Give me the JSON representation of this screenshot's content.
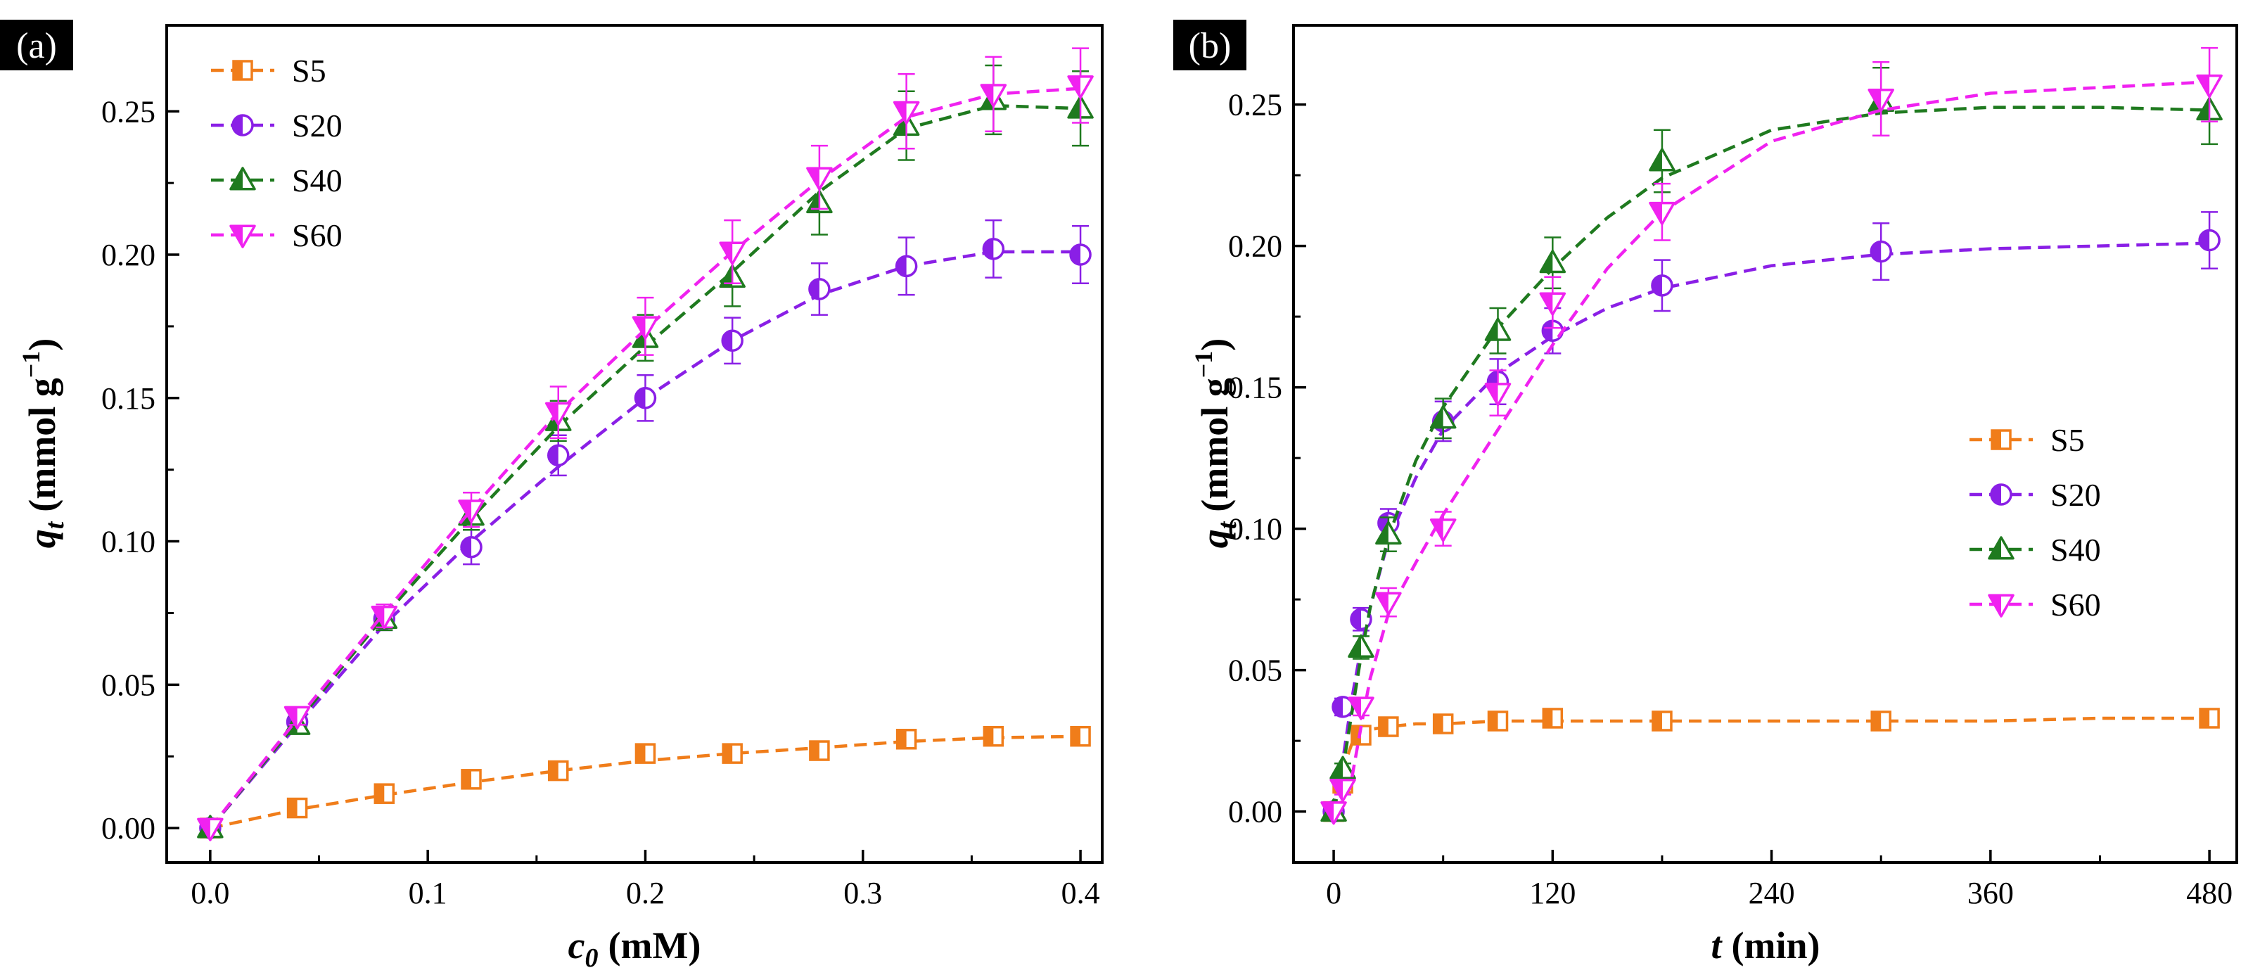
{
  "chart_data": [
    {
      "panel_label": "(a)",
      "type": "line",
      "x_label_main": "c",
      "x_label_sub": "0",
      "x_label_unit": "(mM)",
      "y_label_main": "q",
      "y_label_sub": "t",
      "y_label_unit": "(mmol g",
      "y_label_sup": "−1",
      "y_label_close": ")",
      "xlim": [
        -0.02,
        0.41
      ],
      "ylim": [
        -0.012,
        0.28
      ],
      "xticks": [
        0.0,
        0.1,
        0.2,
        0.3,
        0.4
      ],
      "xtick_labels": [
        "0.0",
        "0.1",
        "0.2",
        "0.3",
        "0.4"
      ],
      "yticks": [
        0.0,
        0.05,
        0.1,
        0.15,
        0.2,
        0.25
      ],
      "ytick_labels": [
        "0.00",
        "0.05",
        "0.10",
        "0.15",
        "0.20",
        "0.25"
      ],
      "legend_position": "top-left",
      "series": [
        {
          "name": "S5",
          "color": "#F07D1A",
          "marker": "square",
          "x": [
            0,
            0.04,
            0.08,
            0.12,
            0.16,
            0.2,
            0.24,
            0.28,
            0.32,
            0.36,
            0.4
          ],
          "y": [
            0.0,
            0.007,
            0.012,
            0.017,
            0.02,
            0.026,
            0.026,
            0.027,
            0.031,
            0.032,
            0.032
          ],
          "err": [
            0,
            0.0015,
            0.0015,
            0.0015,
            0.0015,
            0.0015,
            0.0015,
            0.0015,
            0.0015,
            0.0015,
            0.0015
          ],
          "fit_x": [
            0,
            0.04,
            0.08,
            0.12,
            0.16,
            0.2,
            0.24,
            0.28,
            0.32,
            0.36,
            0.4
          ],
          "fit_y": [
            0.0,
            0.0065,
            0.0115,
            0.016,
            0.02,
            0.0235,
            0.026,
            0.028,
            0.0302,
            0.0315,
            0.032
          ]
        },
        {
          "name": "S20",
          "color": "#8A1FE6",
          "marker": "circle",
          "x": [
            0,
            0.04,
            0.08,
            0.12,
            0.16,
            0.2,
            0.24,
            0.28,
            0.32,
            0.36,
            0.4
          ],
          "y": [
            0.0,
            0.037,
            0.073,
            0.098,
            0.13,
            0.15,
            0.17,
            0.188,
            0.196,
            0.202,
            0.2
          ],
          "err": [
            0,
            0.003,
            0.004,
            0.006,
            0.007,
            0.008,
            0.008,
            0.009,
            0.01,
            0.01,
            0.01
          ],
          "fit_x": [
            0,
            0.04,
            0.08,
            0.12,
            0.16,
            0.2,
            0.24,
            0.28,
            0.32,
            0.36,
            0.4
          ],
          "fit_y": [
            0.0,
            0.036,
            0.071,
            0.1,
            0.126,
            0.15,
            0.17,
            0.186,
            0.196,
            0.201,
            0.201
          ]
        },
        {
          "name": "S40",
          "color": "#1F7A1F",
          "marker": "triangle-up",
          "x": [
            0,
            0.04,
            0.08,
            0.12,
            0.16,
            0.2,
            0.24,
            0.28,
            0.32,
            0.36,
            0.4
          ],
          "y": [
            0.0,
            0.036,
            0.073,
            0.109,
            0.142,
            0.171,
            0.192,
            0.218,
            0.245,
            0.254,
            0.251
          ],
          "err": [
            0,
            0.003,
            0.004,
            0.005,
            0.007,
            0.008,
            0.01,
            0.011,
            0.012,
            0.012,
            0.013
          ],
          "fit_x": [
            0,
            0.04,
            0.08,
            0.12,
            0.16,
            0.2,
            0.24,
            0.28,
            0.32,
            0.36,
            0.4
          ],
          "fit_y": [
            0.0,
            0.037,
            0.074,
            0.108,
            0.14,
            0.168,
            0.194,
            0.222,
            0.244,
            0.252,
            0.251
          ]
        },
        {
          "name": "S60",
          "color": "#F022F0",
          "marker": "triangle-down",
          "x": [
            0,
            0.04,
            0.08,
            0.12,
            0.16,
            0.2,
            0.24,
            0.28,
            0.32,
            0.36,
            0.4
          ],
          "y": [
            0.0,
            0.039,
            0.074,
            0.111,
            0.145,
            0.175,
            0.201,
            0.227,
            0.25,
            0.256,
            0.259
          ],
          "err": [
            0,
            0.003,
            0.004,
            0.006,
            0.009,
            0.01,
            0.011,
            0.011,
            0.013,
            0.013,
            0.013
          ],
          "fit_x": [
            0,
            0.04,
            0.08,
            0.12,
            0.16,
            0.2,
            0.24,
            0.28,
            0.32,
            0.36,
            0.4
          ],
          "fit_y": [
            0.0,
            0.038,
            0.075,
            0.111,
            0.145,
            0.174,
            0.201,
            0.226,
            0.248,
            0.256,
            0.258
          ]
        }
      ]
    },
    {
      "panel_label": "(b)",
      "type": "line",
      "x_label_main": "t",
      "x_label_sub": "",
      "x_label_unit": "(min)",
      "y_label_main": "q",
      "y_label_sub": "t",
      "y_label_unit": "(mmol g",
      "y_label_sup": "−1",
      "y_label_close": ")",
      "xlim": [
        -22,
        495
      ],
      "ylim": [
        -0.018,
        0.278
      ],
      "xticks": [
        0,
        120,
        240,
        360,
        480
      ],
      "xtick_labels": [
        "0",
        "120",
        "240",
        "360",
        "480"
      ],
      "yticks": [
        0.0,
        0.05,
        0.1,
        0.15,
        0.2,
        0.25
      ],
      "ytick_labels": [
        "0.00",
        "0.05",
        "0.10",
        "0.15",
        "0.20",
        "0.25"
      ],
      "legend_position": "center-right",
      "series": [
        {
          "name": "S5",
          "color": "#F07D1A",
          "marker": "square",
          "x": [
            0,
            5,
            15,
            30,
            60,
            90,
            120,
            180,
            300,
            480
          ],
          "y": [
            0.0,
            0.01,
            0.027,
            0.03,
            0.031,
            0.032,
            0.033,
            0.032,
            0.032,
            0.033
          ],
          "err": [
            0,
            0.0015,
            0.0015,
            0.0015,
            0.0015,
            0.0015,
            0.0015,
            0.0015,
            0.0015,
            0.0015
          ],
          "fit_x": [
            0,
            5,
            10,
            15,
            20,
            30,
            45,
            60,
            90,
            120,
            180,
            240,
            300,
            360,
            420,
            480
          ],
          "fit_y": [
            0.0,
            0.015,
            0.024,
            0.028,
            0.029,
            0.03,
            0.031,
            0.031,
            0.032,
            0.032,
            0.032,
            0.032,
            0.032,
            0.032,
            0.033,
            0.033
          ]
        },
        {
          "name": "S20",
          "color": "#8A1FE6",
          "marker": "circle",
          "x": [
            0,
            5,
            15,
            30,
            60,
            90,
            120,
            180,
            300,
            480
          ],
          "y": [
            0.0,
            0.037,
            0.068,
            0.102,
            0.138,
            0.152,
            0.17,
            0.186,
            0.198,
            0.202
          ],
          "err": [
            0,
            0.003,
            0.004,
            0.005,
            0.007,
            0.008,
            0.008,
            0.009,
            0.01,
            0.01
          ],
          "fit_x": [
            0,
            5,
            10,
            15,
            20,
            30,
            45,
            60,
            90,
            120,
            150,
            180,
            240,
            300,
            360,
            420,
            480
          ],
          "fit_y": [
            0.0,
            0.018,
            0.04,
            0.058,
            0.072,
            0.096,
            0.118,
            0.135,
            0.155,
            0.168,
            0.178,
            0.185,
            0.193,
            0.197,
            0.199,
            0.2,
            0.201
          ]
        },
        {
          "name": "S40",
          "color": "#1F7A1F",
          "marker": "triangle-up",
          "x": [
            0,
            5,
            15,
            30,
            60,
            90,
            120,
            180,
            300,
            480
          ],
          "y": [
            0.0,
            0.015,
            0.058,
            0.098,
            0.139,
            0.17,
            0.194,
            0.23,
            0.251,
            0.248
          ],
          "err": [
            0,
            0.002,
            0.004,
            0.006,
            0.007,
            0.008,
            0.009,
            0.011,
            0.012,
            0.012
          ],
          "fit_x": [
            0,
            5,
            10,
            15,
            20,
            30,
            45,
            60,
            90,
            120,
            150,
            180,
            240,
            300,
            360,
            420,
            480
          ],
          "fit_y": [
            0.0,
            0.015,
            0.035,
            0.055,
            0.072,
            0.097,
            0.124,
            0.143,
            0.171,
            0.192,
            0.21,
            0.224,
            0.241,
            0.247,
            0.249,
            0.249,
            0.248
          ]
        },
        {
          "name": "S60",
          "color": "#F022F0",
          "marker": "triangle-down",
          "x": [
            0,
            5,
            15,
            30,
            60,
            90,
            120,
            180,
            300,
            480
          ],
          "y": [
            0.0,
            0.008,
            0.037,
            0.074,
            0.1,
            0.148,
            0.18,
            0.212,
            0.252,
            0.257
          ],
          "err": [
            0,
            0.002,
            0.003,
            0.005,
            0.006,
            0.008,
            0.009,
            0.01,
            0.013,
            0.013
          ],
          "fit_x": [
            0,
            5,
            10,
            15,
            20,
            30,
            45,
            60,
            90,
            120,
            150,
            180,
            240,
            300,
            360,
            420,
            480
          ],
          "fit_y": [
            0.0,
            0.004,
            0.012,
            0.03,
            0.047,
            0.07,
            0.088,
            0.105,
            0.135,
            0.165,
            0.192,
            0.212,
            0.237,
            0.248,
            0.254,
            0.256,
            0.258
          ]
        }
      ]
    }
  ]
}
